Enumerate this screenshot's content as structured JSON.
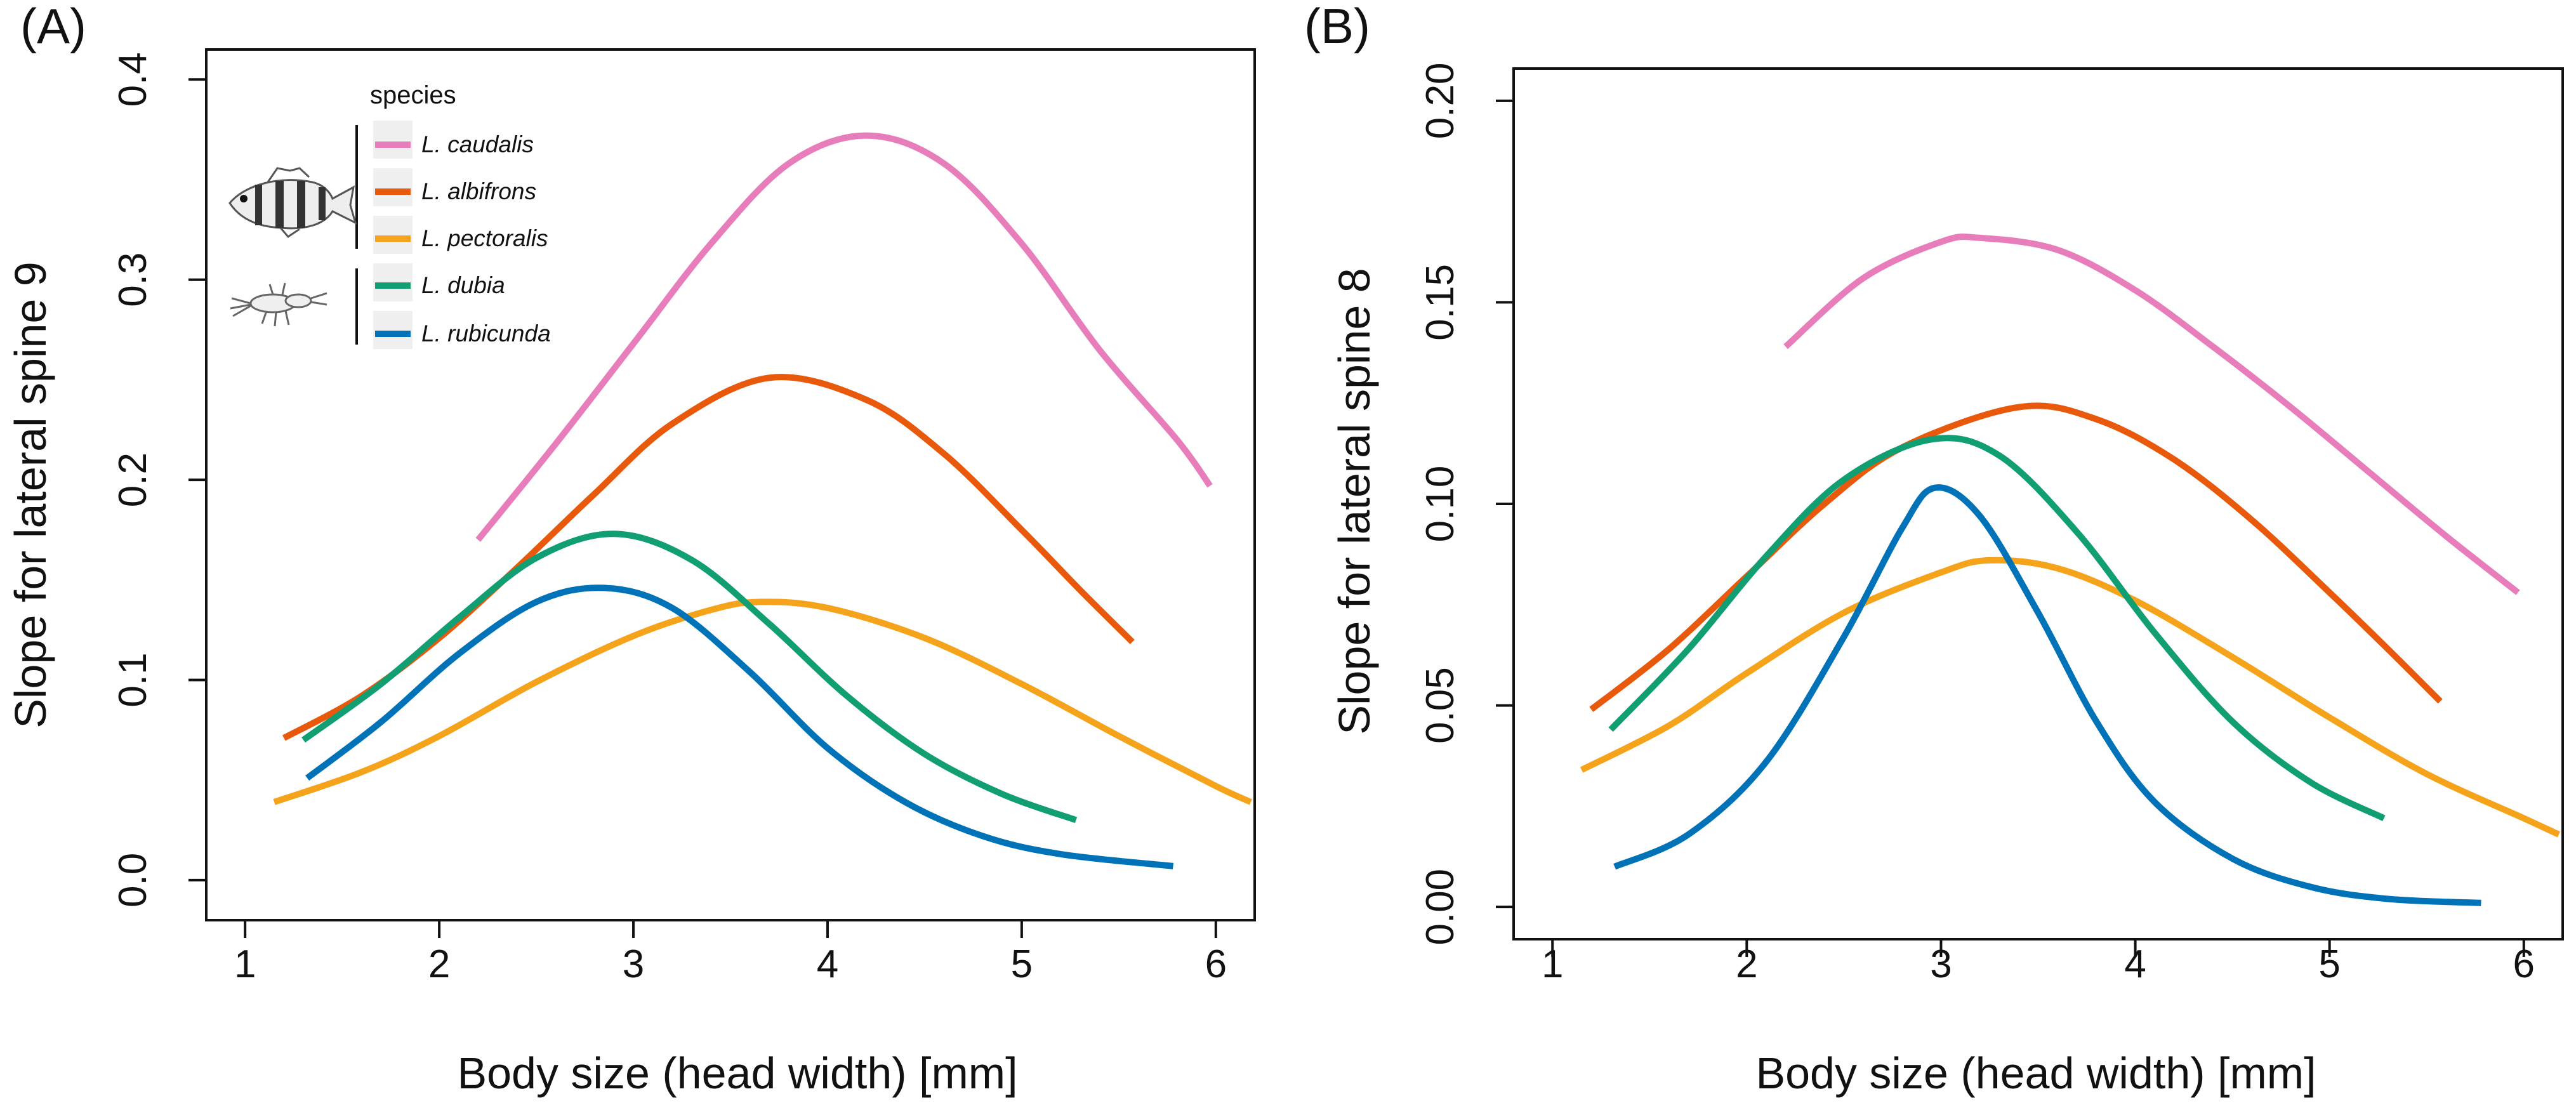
{
  "chart_data": [
    {
      "panel_label": "(A)",
      "type": "line",
      "xlabel": "Body size (head width) [mm]",
      "ylabel": "Slope for lateral spine 9",
      "xlim": [
        0.8,
        6.2
      ],
      "ylim": [
        -0.02,
        0.415
      ],
      "xticks": [
        1,
        2,
        3,
        4,
        5,
        6
      ],
      "yticks": [
        0.0,
        0.1,
        0.2,
        0.3,
        0.4
      ],
      "ytick_labels": [
        "0.0",
        "0.1",
        "0.2",
        "0.3",
        "0.4"
      ],
      "legend": {
        "title": "species",
        "groups": [
          {
            "icon": "fish-icon",
            "members": [
              "L. caudalis",
              "L. albifrons",
              "L. pectoralis"
            ]
          },
          {
            "icon": "larva-icon",
            "members": [
              "L. dubia",
              "L. rubicunda"
            ]
          }
        ]
      },
      "series": [
        {
          "name": "L. caudalis",
          "color": "#E87DBB",
          "x": [
            2.2,
            2.6,
            3.0,
            3.4,
            3.8,
            4.2,
            4.6,
            5.0,
            5.4,
            5.8,
            5.97
          ],
          "y": [
            0.17,
            0.218,
            0.268,
            0.318,
            0.358,
            0.372,
            0.358,
            0.318,
            0.265,
            0.22,
            0.197
          ]
        },
        {
          "name": "L. albifrons",
          "color": "#E8590C",
          "x": [
            1.2,
            1.6,
            2.0,
            2.4,
            2.8,
            3.2,
            3.7,
            4.2,
            4.6,
            5.0,
            5.3,
            5.57
          ],
          "y": [
            0.071,
            0.092,
            0.121,
            0.156,
            0.193,
            0.228,
            0.251,
            0.24,
            0.213,
            0.175,
            0.145,
            0.119
          ]
        },
        {
          "name": "L. pectoralis",
          "color": "#F5A31A",
          "x": [
            1.15,
            1.6,
            2.0,
            2.5,
            3.0,
            3.4,
            3.65,
            4.0,
            4.5,
            5.0,
            5.5,
            6.0,
            6.18
          ],
          "y": [
            0.039,
            0.054,
            0.072,
            0.099,
            0.122,
            0.135,
            0.139,
            0.136,
            0.121,
            0.098,
            0.072,
            0.047,
            0.039
          ]
        },
        {
          "name": "L. dubia",
          "color": "#119E73",
          "x": [
            1.3,
            1.7,
            2.1,
            2.5,
            2.9,
            3.3,
            3.7,
            4.1,
            4.5,
            4.9,
            5.28
          ],
          "y": [
            0.07,
            0.098,
            0.131,
            0.161,
            0.173,
            0.16,
            0.128,
            0.092,
            0.063,
            0.043,
            0.03
          ]
        },
        {
          "name": "L. rubicunda",
          "color": "#0073B8",
          "x": [
            1.32,
            1.7,
            2.1,
            2.5,
            2.85,
            3.2,
            3.6,
            4.0,
            4.4,
            4.8,
            5.2,
            5.78
          ],
          "y": [
            0.051,
            0.079,
            0.113,
            0.139,
            0.146,
            0.136,
            0.104,
            0.066,
            0.039,
            0.022,
            0.013,
            0.007
          ]
        }
      ]
    },
    {
      "panel_label": "(B)",
      "type": "line",
      "xlabel": "Body size (head width) [mm]",
      "ylabel": "Slope for lateral spine 8",
      "xlim": [
        0.8,
        6.2
      ],
      "ylim": [
        -0.008,
        0.208
      ],
      "xticks": [
        1,
        2,
        3,
        4,
        5,
        6
      ],
      "yticks": [
        0.0,
        0.05,
        0.1,
        0.15,
        0.2
      ],
      "ytick_labels": [
        "0.00",
        "0.05",
        "0.10",
        "0.15",
        "0.20"
      ],
      "series": [
        {
          "name": "L. caudalis",
          "color": "#E87DBB",
          "x": [
            2.2,
            2.6,
            3.0,
            3.2,
            3.6,
            4.0,
            4.4,
            4.8,
            5.2,
            5.6,
            5.97
          ],
          "y": [
            0.139,
            0.156,
            0.165,
            0.166,
            0.163,
            0.153,
            0.139,
            0.124,
            0.108,
            0.092,
            0.078
          ]
        },
        {
          "name": "L. albifrons",
          "color": "#E8590C",
          "x": [
            1.2,
            1.6,
            2.0,
            2.4,
            2.8,
            3.4,
            3.8,
            4.2,
            4.6,
            5.0,
            5.3,
            5.57
          ],
          "y": [
            0.049,
            0.064,
            0.082,
            0.1,
            0.114,
            0.124,
            0.121,
            0.111,
            0.096,
            0.078,
            0.064,
            0.051
          ]
        },
        {
          "name": "L. pectoralis",
          "color": "#F5A31A",
          "x": [
            1.15,
            1.6,
            2.0,
            2.5,
            3.0,
            3.25,
            3.6,
            4.0,
            4.5,
            5.0,
            5.5,
            6.0,
            6.18
          ],
          "y": [
            0.034,
            0.045,
            0.058,
            0.073,
            0.083,
            0.086,
            0.084,
            0.076,
            0.062,
            0.047,
            0.033,
            0.022,
            0.018
          ]
        },
        {
          "name": "L. dubia",
          "color": "#119E73",
          "x": [
            1.3,
            1.7,
            2.1,
            2.5,
            2.95,
            3.3,
            3.7,
            4.1,
            4.5,
            4.9,
            5.28
          ],
          "y": [
            0.044,
            0.064,
            0.087,
            0.106,
            0.116,
            0.112,
            0.093,
            0.068,
            0.046,
            0.031,
            0.022
          ]
        },
        {
          "name": "L. rubicunda",
          "color": "#0073B8",
          "x": [
            1.32,
            1.7,
            2.1,
            2.5,
            2.8,
            2.97,
            3.2,
            3.5,
            3.8,
            4.1,
            4.5,
            4.9,
            5.3,
            5.78
          ],
          "y": [
            0.01,
            0.018,
            0.036,
            0.067,
            0.094,
            0.104,
            0.097,
            0.073,
            0.046,
            0.026,
            0.012,
            0.005,
            0.002,
            0.001
          ]
        }
      ]
    }
  ]
}
